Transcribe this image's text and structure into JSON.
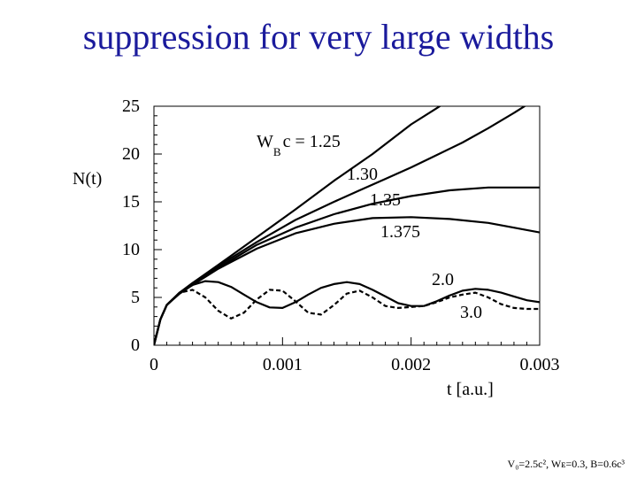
{
  "slide": {
    "title": "suppression for very large widths",
    "footnote": "V₀=2.5c², Wᴇ=0.3, B=0.6c³"
  },
  "chart_data": {
    "type": "line",
    "title": "",
    "xlabel": "t [a.u.]",
    "ylabel": "N(t)",
    "xlim": [
      0,
      0.003
    ],
    "ylim": [
      0,
      25
    ],
    "x_ticks": [
      "0",
      "0.001",
      "0.002",
      "0.003"
    ],
    "y_ticks": [
      "0",
      "5",
      "10",
      "15",
      "20",
      "25"
    ],
    "grid": false,
    "legend_title": {
      "main": "W",
      "sub": "B",
      "rest": "c = 1.25"
    },
    "series": [
      {
        "name": "1.25",
        "style": "solid",
        "x": [
          0,
          5e-05,
          0.0001,
          0.0002,
          0.0003,
          0.0005,
          0.0008,
          0.0011,
          0.0014,
          0.0017,
          0.002,
          0.0022,
          0.0024,
          0.0026
        ],
        "y": [
          0,
          2.7,
          4.2,
          5.5,
          6.5,
          8.4,
          11.3,
          14.2,
          17.2,
          20.0,
          23.1,
          24.8,
          26.6,
          28.8
        ]
      },
      {
        "name": "1.30",
        "style": "solid",
        "x": [
          0,
          5e-05,
          0.0001,
          0.0002,
          0.0003,
          0.0005,
          0.0008,
          0.0011,
          0.0014,
          0.0016,
          0.0018,
          0.002,
          0.0022,
          0.0024,
          0.0026,
          0.0028,
          0.003
        ],
        "y": [
          0,
          2.7,
          4.2,
          5.5,
          6.5,
          8.3,
          10.8,
          13.1,
          15.0,
          16.2,
          17.4,
          18.6,
          19.9,
          21.2,
          22.7,
          24.3,
          26.0
        ]
      },
      {
        "name": "1.35",
        "style": "solid",
        "x": [
          0,
          5e-05,
          0.0001,
          0.0002,
          0.0003,
          0.0005,
          0.0008,
          0.0011,
          0.0014,
          0.0017,
          0.002,
          0.0023,
          0.0026,
          0.0029,
          0.003
        ],
        "y": [
          0,
          2.7,
          4.2,
          5.5,
          6.4,
          8.1,
          10.5,
          12.3,
          13.7,
          14.8,
          15.6,
          16.2,
          16.5,
          16.5,
          16.5
        ]
      },
      {
        "name": "1.375",
        "style": "solid",
        "x": [
          0,
          5e-05,
          0.0001,
          0.0002,
          0.0003,
          0.0005,
          0.0008,
          0.0011,
          0.0014,
          0.0017,
          0.002,
          0.0023,
          0.0026,
          0.003
        ],
        "y": [
          0,
          2.7,
          4.2,
          5.4,
          6.3,
          8.0,
          10.1,
          11.7,
          12.7,
          13.3,
          13.4,
          13.2,
          12.8,
          11.8
        ]
      },
      {
        "name": "2.0",
        "style": "solid",
        "x": [
          0,
          5e-05,
          0.0001,
          0.0002,
          0.0003,
          0.0004,
          0.0005,
          0.0006,
          0.0007,
          0.0008,
          0.0009,
          0.001,
          0.0011,
          0.0012,
          0.0013,
          0.0014,
          0.0015,
          0.0016,
          0.0017,
          0.0018,
          0.0019,
          0.002,
          0.0021,
          0.0022,
          0.0023,
          0.0024,
          0.0025,
          0.0026,
          0.0027,
          0.0028,
          0.0029,
          0.003
        ],
        "y": [
          0,
          2.7,
          4.2,
          5.5,
          6.3,
          6.7,
          6.6,
          6.1,
          5.3,
          4.5,
          3.95,
          3.9,
          4.5,
          5.3,
          6.0,
          6.4,
          6.6,
          6.4,
          5.8,
          5.1,
          4.4,
          4.1,
          4.1,
          4.6,
          5.2,
          5.7,
          5.9,
          5.8,
          5.5,
          5.1,
          4.7,
          4.5
        ]
      },
      {
        "name": "3.0",
        "style": "dashed",
        "x": [
          0,
          5e-05,
          0.0001,
          0.0002,
          0.0003,
          0.0004,
          0.0005,
          0.0006,
          0.0007,
          0.0008,
          0.0009,
          0.001,
          0.0011,
          0.0012,
          0.0013,
          0.0014,
          0.0015,
          0.0016,
          0.0017,
          0.0018,
          0.0019,
          0.002,
          0.0021,
          0.0022,
          0.0023,
          0.0024,
          0.0025,
          0.0026,
          0.0027,
          0.0028,
          0.0029,
          0.003
        ],
        "y": [
          0,
          2.7,
          4.2,
          5.5,
          5.8,
          5.0,
          3.6,
          2.8,
          3.4,
          4.8,
          5.8,
          5.7,
          4.6,
          3.4,
          3.2,
          4.2,
          5.4,
          5.7,
          5.0,
          4.1,
          3.9,
          4.0,
          4.1,
          4.5,
          5.0,
          5.3,
          5.5,
          5.0,
          4.3,
          3.9,
          3.8,
          3.8
        ]
      }
    ]
  }
}
